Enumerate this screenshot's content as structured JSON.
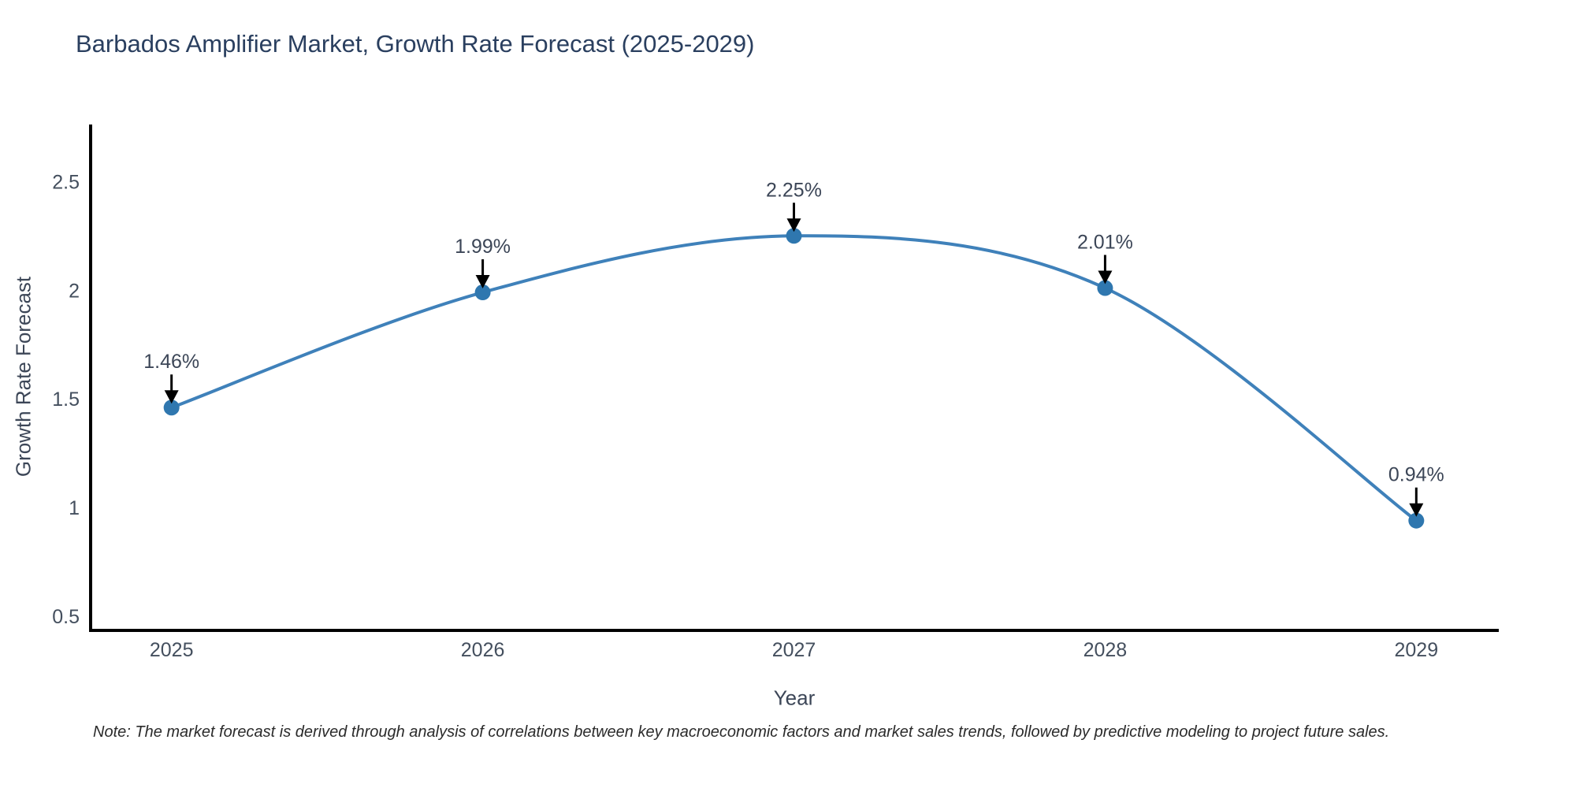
{
  "chart_data": {
    "type": "line",
    "title": "Barbados Amplifier Market, Growth Rate Forecast (2025-2029)",
    "xlabel": "Year",
    "ylabel": "Growth Rate Forecast",
    "x": [
      2025,
      2026,
      2027,
      2028,
      2029
    ],
    "values": [
      1.46,
      1.99,
      2.25,
      2.01,
      0.94
    ],
    "point_labels": [
      "1.46%",
      "1.99%",
      "2.25%",
      "2.01%",
      "0.94%"
    ],
    "xtick_labels": [
      "2025",
      "2026",
      "2027",
      "2028",
      "2029"
    ],
    "yticks": [
      0.5,
      1,
      1.5,
      2,
      2.5
    ],
    "ytick_labels": [
      "0.5",
      "1",
      "1.5",
      "2",
      "2.5"
    ],
    "xlim": [
      2024.74,
      2029.26
    ],
    "ylim": [
      0.435,
      2.755
    ],
    "grid": false,
    "legend": "none",
    "line_shape": "spline",
    "note": "Note: The market forecast is derived through analysis of correlations between key macroeconomic factors and market sales trends, followed by predictive modeling to project future sales.",
    "colors": {
      "line": "#3f81ba",
      "marker": "#2f77af",
      "axis": "#000000",
      "arrow": "#000000",
      "title_text": "#2a3f5f",
      "tick_text": "#444f5e",
      "annotation_text": "#3c4657",
      "note_text": "#2b2b2b"
    }
  }
}
